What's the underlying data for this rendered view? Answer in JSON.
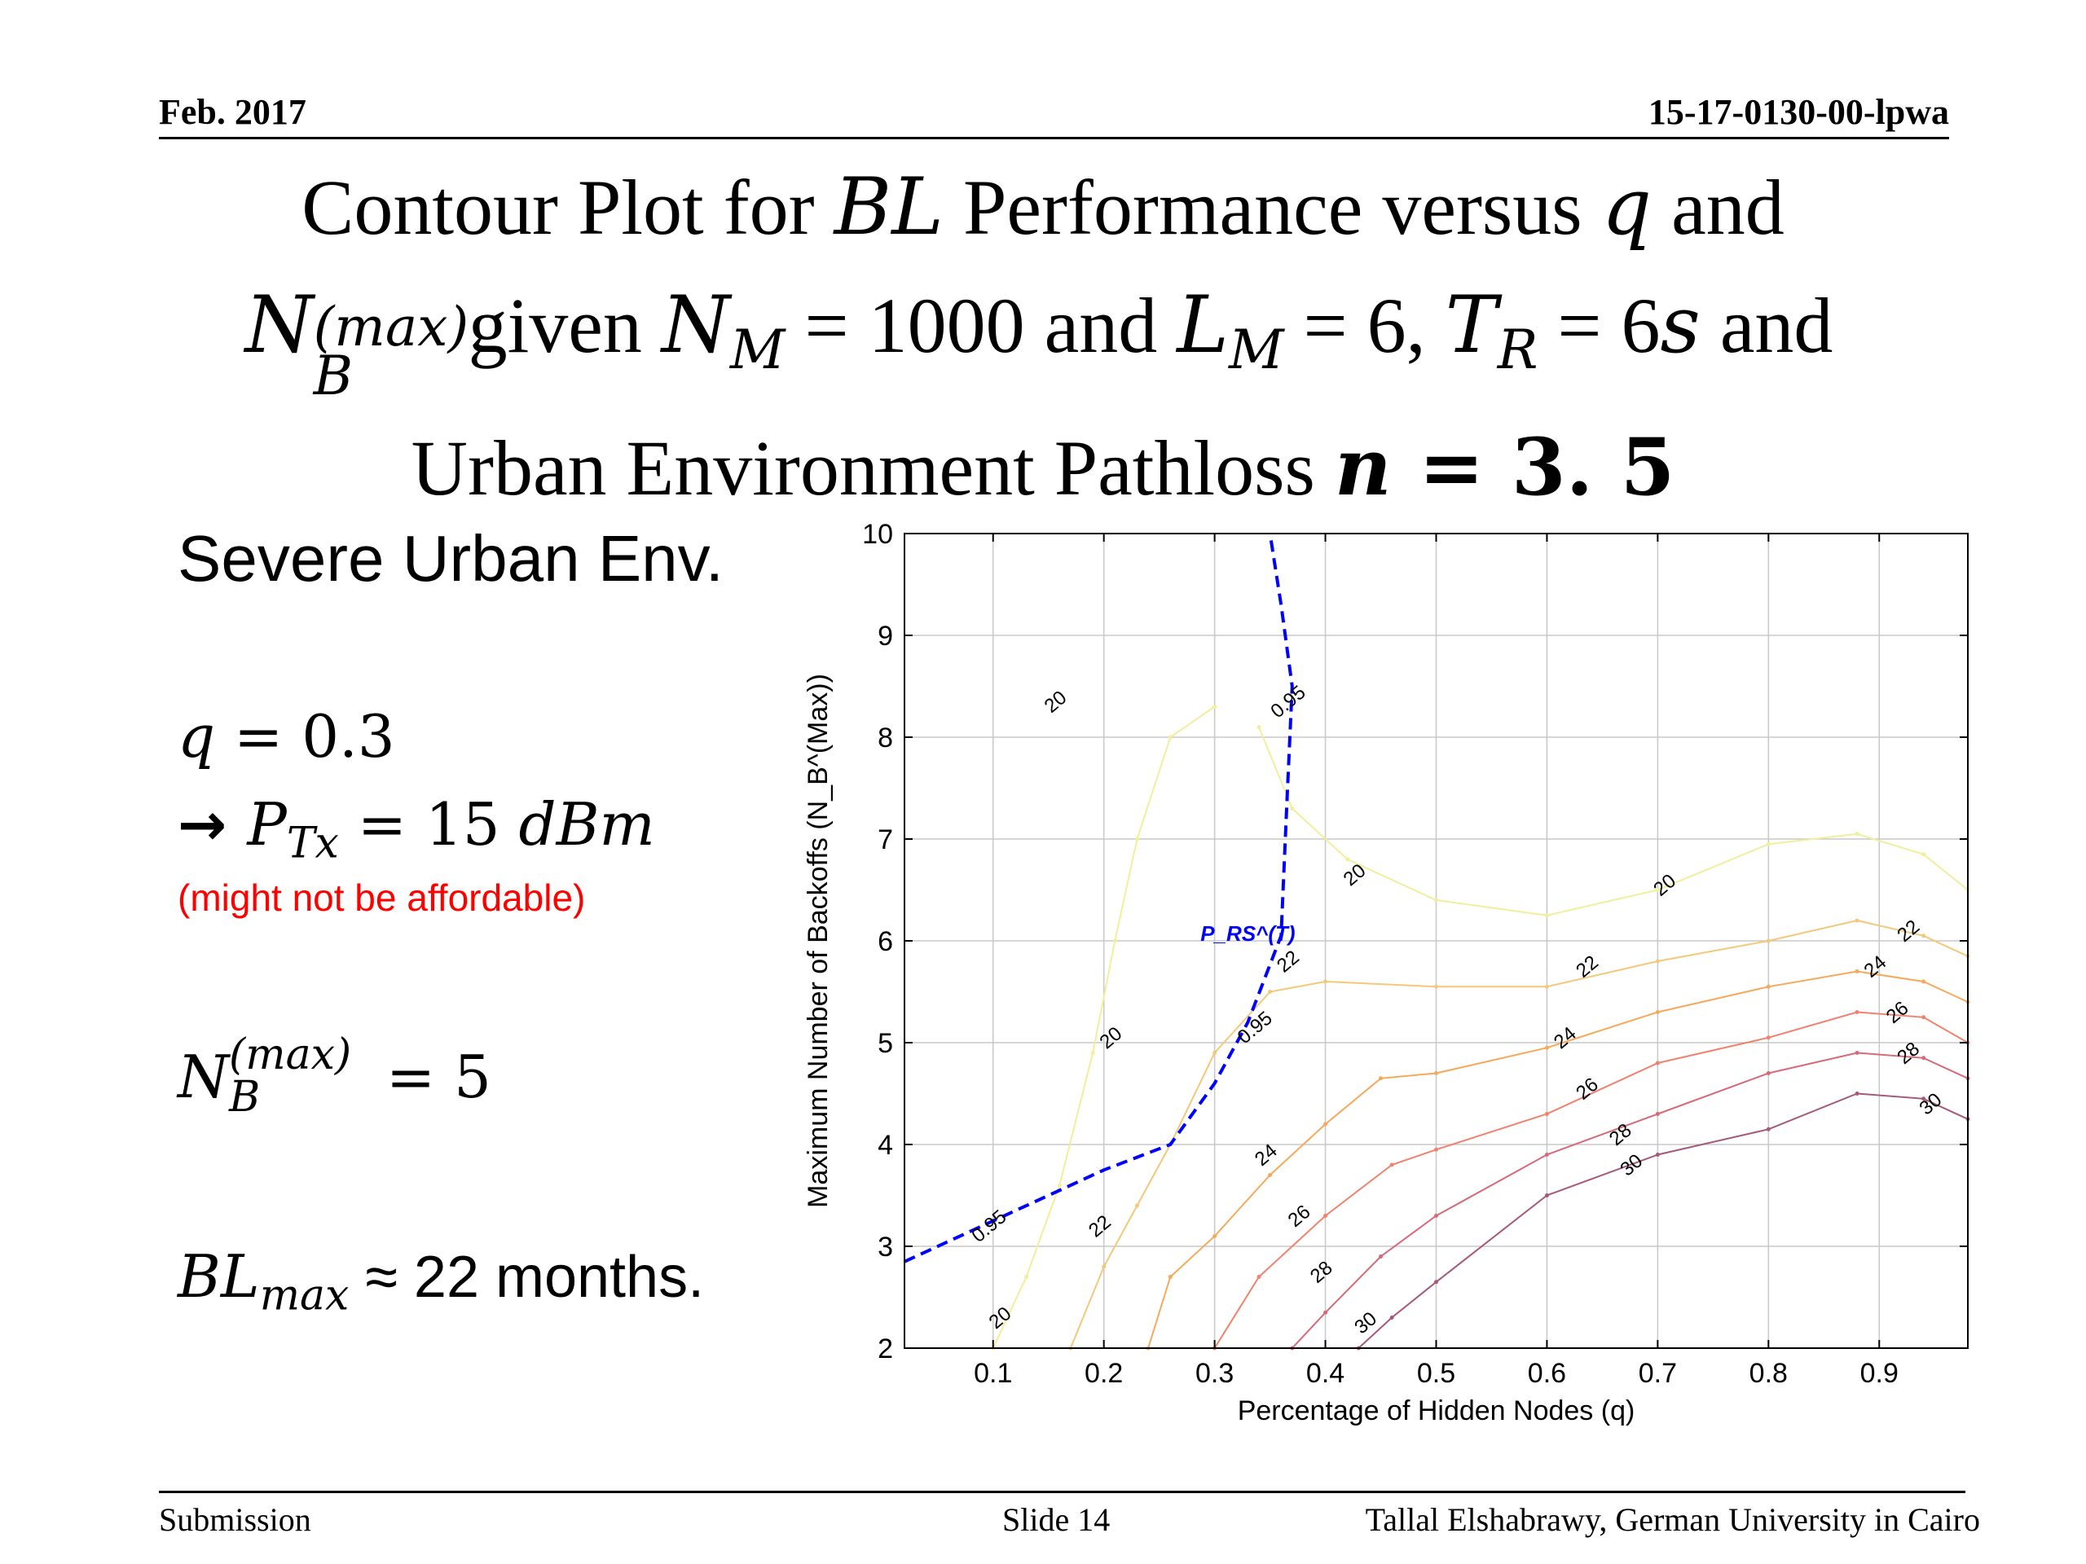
{
  "header": {
    "date": "Feb. 2017",
    "doc_id": "15-17-0130-00-lpwa"
  },
  "title": {
    "l1_a": "Contour Plot for ",
    "l1_bl": "BL",
    "l1_b": " Performance versus ",
    "l1_q": "q",
    "l1_c": " and",
    "l2_nb": "N",
    "l2_nb_sub": "B",
    "l2_nb_sup": "(max)",
    "l2_given": "given  ",
    "l2_nm": "N",
    "l2_nm_sub": "M",
    "l2_eq1": " = 1000 and ",
    "l2_lm": "L",
    "l2_lm_sub": "M",
    "l2_eq2": " = 6, ",
    "l2_tr": "T",
    "l2_tr_sub": "R",
    "l2_eq3": " = 6",
    "l2_s": "s",
    "l2_and": " and",
    "l3_a": "Urban Environment Pathloss ",
    "l3_n": "n",
    "l3_eq": " = 3. 5"
  },
  "left_panel": {
    "env": "Severe Urban Env.",
    "q_var": "q",
    "q_val": " = 0.3",
    "arrow": "→ ",
    "ptx_var": "P",
    "ptx_sub": "Tx",
    "ptx_val": " = 15 ",
    "ptx_unit": "dBm",
    "note": "(might not be affordable)",
    "nb_var": "N",
    "nb_sub": "B",
    "nb_sup": "(max)",
    "nb_val": " = 5",
    "bl_var": "BL",
    "bl_sub": "max",
    "bl_val": " ≈ 22 months."
  },
  "footer": {
    "left": "Submission",
    "center": "Slide 14",
    "right": "Tallal Elshabrawy, German University in Cairo"
  },
  "chart_data": {
    "type": "contour",
    "xlabel": "Percentage of Hidden Nodes (q)",
    "ylabel": "Maximum Number of Backoffs (N_B^(Max))",
    "xlim": [
      0.02,
      0.98
    ],
    "ylim": [
      2,
      10
    ],
    "xticks": [
      "0.1",
      "0.2",
      "0.3",
      "0.4",
      "0.5",
      "0.6",
      "0.7",
      "0.8",
      "0.9"
    ],
    "yticks": [
      "2",
      "3",
      "4",
      "5",
      "6",
      "7",
      "8",
      "9",
      "10"
    ],
    "grid": true,
    "contours": [
      {
        "level": "20",
        "color": "#f1ee9c",
        "x": [
          0.1,
          0.13,
          0.16,
          0.19,
          0.21,
          0.23,
          0.26,
          0.3
        ],
        "y": [
          2,
          2.7,
          3.6,
          4.9,
          6.0,
          7.0,
          8.0,
          8.3
        ]
      },
      {
        "level": "20",
        "color": "#f1ee9c",
        "x": [
          0.34,
          0.37,
          0.42,
          0.5,
          0.6,
          0.7,
          0.8,
          0.88,
          0.94,
          0.98
        ],
        "y": [
          8.1,
          7.3,
          6.8,
          6.4,
          6.25,
          6.5,
          6.95,
          7.05,
          6.85,
          6.5
        ]
      },
      {
        "level": "22",
        "color": "#f4c879",
        "x": [
          0.17,
          0.2,
          0.23,
          0.26,
          0.3,
          0.35,
          0.4,
          0.5,
          0.6,
          0.7,
          0.8,
          0.88,
          0.94,
          0.98
        ],
        "y": [
          2,
          2.8,
          3.4,
          4.0,
          4.9,
          5.5,
          5.6,
          5.55,
          5.55,
          5.8,
          6.0,
          6.2,
          6.05,
          5.85
        ]
      },
      {
        "level": "24",
        "color": "#f6a95b",
        "x": [
          0.24,
          0.26,
          0.3,
          0.35,
          0.4,
          0.45,
          0.5,
          0.6,
          0.7,
          0.8,
          0.88,
          0.94,
          0.98
        ],
        "y": [
          2,
          2.7,
          3.1,
          3.7,
          4.2,
          4.65,
          4.7,
          4.95,
          5.3,
          5.55,
          5.7,
          5.6,
          5.4
        ]
      },
      {
        "level": "26",
        "color": "#f0826f",
        "x": [
          0.3,
          0.34,
          0.4,
          0.46,
          0.5,
          0.6,
          0.7,
          0.8,
          0.88,
          0.94,
          0.98
        ],
        "y": [
          2,
          2.7,
          3.3,
          3.8,
          3.95,
          4.3,
          4.8,
          5.05,
          5.3,
          5.25,
          5.0
        ]
      },
      {
        "level": "28",
        "color": "#d66a78",
        "x": [
          0.37,
          0.4,
          0.45,
          0.5,
          0.6,
          0.7,
          0.8,
          0.88,
          0.94,
          0.98
        ],
        "y": [
          2,
          2.35,
          2.9,
          3.3,
          3.9,
          4.3,
          4.7,
          4.9,
          4.85,
          4.65
        ]
      },
      {
        "level": "30",
        "color": "#a6587a",
        "x": [
          0.43,
          0.46,
          0.5,
          0.6,
          0.7,
          0.8,
          0.88,
          0.94,
          0.98
        ],
        "y": [
          2,
          2.3,
          2.65,
          3.5,
          3.9,
          4.15,
          4.5,
          4.45,
          4.25
        ]
      }
    ],
    "boundary": {
      "label": "P_RS^(T)",
      "level": "0.95",
      "color": "#0000ff",
      "x": [
        0.02,
        0.1,
        0.2,
        0.26,
        0.3,
        0.33,
        0.36,
        0.365,
        0.37,
        0.36,
        0.35
      ],
      "y": [
        2.85,
        3.25,
        3.75,
        4.0,
        4.6,
        5.2,
        6.05,
        7.3,
        8.5,
        9.3,
        10
      ]
    },
    "contour_labels": [
      {
        "text": "20",
        "x": 0.16,
        "y": 8.3
      },
      {
        "text": "20",
        "x": 0.21,
        "y": 5.0
      },
      {
        "text": "20",
        "x": 0.11,
        "y": 2.25
      },
      {
        "text": "20",
        "x": 0.43,
        "y": 6.6
      },
      {
        "text": "20",
        "x": 0.71,
        "y": 6.5
      },
      {
        "text": "22",
        "x": 0.2,
        "y": 3.15
      },
      {
        "text": "22",
        "x": 0.37,
        "y": 5.75
      },
      {
        "text": "22",
        "x": 0.64,
        "y": 5.7
      },
      {
        "text": "22",
        "x": 0.93,
        "y": 6.05
      },
      {
        "text": "24",
        "x": 0.35,
        "y": 3.85
      },
      {
        "text": "24",
        "x": 0.62,
        "y": 5.0
      },
      {
        "text": "24",
        "x": 0.9,
        "y": 5.7
      },
      {
        "text": "26",
        "x": 0.38,
        "y": 3.25
      },
      {
        "text": "26",
        "x": 0.64,
        "y": 4.5
      },
      {
        "text": "26",
        "x": 0.92,
        "y": 5.25
      },
      {
        "text": "28",
        "x": 0.4,
        "y": 2.7
      },
      {
        "text": "28",
        "x": 0.67,
        "y": 4.05
      },
      {
        "text": "28",
        "x": 0.93,
        "y": 4.85
      },
      {
        "text": "30",
        "x": 0.44,
        "y": 2.2
      },
      {
        "text": "30",
        "x": 0.68,
        "y": 3.75
      },
      {
        "text": "30",
        "x": 0.95,
        "y": 4.35
      },
      {
        "text": "0.95",
        "x": 0.1,
        "y": 3.15
      },
      {
        "text": "0.95",
        "x": 0.34,
        "y": 5.1
      },
      {
        "text": "0.95",
        "x": 0.37,
        "y": 8.3
      }
    ]
  }
}
